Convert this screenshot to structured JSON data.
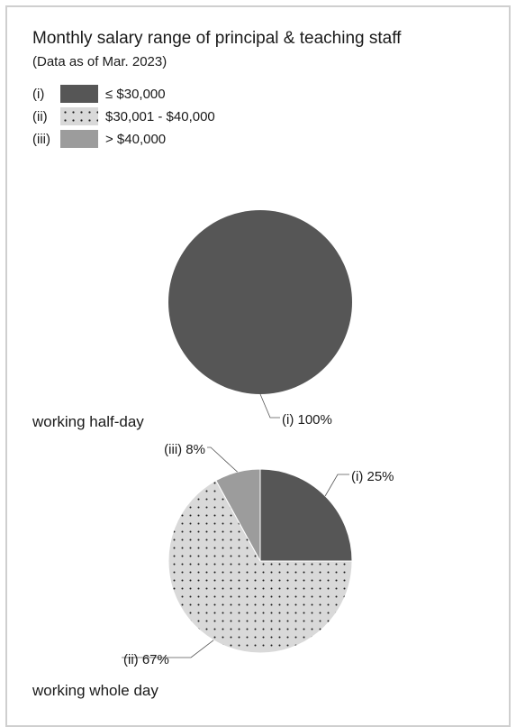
{
  "title": "Monthly salary range of principal & teaching staff",
  "subtitle": "(Data as of Mar. 2023)",
  "legend": [
    {
      "key": "(i)",
      "label": "≤ $30,000",
      "pattern": "solid-dark",
      "color": "#565656"
    },
    {
      "key": "(ii)",
      "label": "$30,001 - $40,000",
      "pattern": "dotted",
      "color": "#d9d9d9"
    },
    {
      "key": "(iii)",
      "label": "> $40,000",
      "pattern": "solid-grey",
      "color": "#9c9c9c"
    }
  ],
  "chart_data": [
    {
      "type": "pie",
      "caption": "working half-day",
      "slices": [
        {
          "key": "(i)",
          "value": 100,
          "label": "(i) 100%"
        }
      ]
    },
    {
      "type": "pie",
      "caption": "working whole day",
      "slices": [
        {
          "key": "(i)",
          "value": 25,
          "label": "(i) 25%"
        },
        {
          "key": "(ii)",
          "value": 67,
          "label": "(ii) 67%"
        },
        {
          "key": "(iii)",
          "value": 8,
          "label": "(iii) 8%"
        }
      ]
    }
  ]
}
